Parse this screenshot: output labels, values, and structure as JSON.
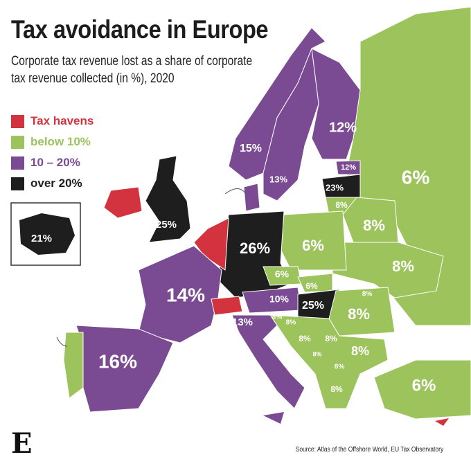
{
  "title": "Tax avoidance in Europe",
  "subtitle": "Corporate tax revenue lost as a share of corporate tax revenue collected (in %), 2020",
  "legend": [
    {
      "label": "Tax havens",
      "color": "#d2333f"
    },
    {
      "label": "below 10%",
      "color": "#9cc35c"
    },
    {
      "label": "10 – 20%",
      "color": "#7a4a93"
    },
    {
      "label": "over 20%",
      "color": "#1e1e1e"
    }
  ],
  "regions": [
    {
      "label": "12%",
      "category": "10 – 20%"
    },
    {
      "label": "15%",
      "category": "10 – 20%"
    },
    {
      "label": "13%",
      "category": "10 – 20%"
    },
    {
      "label": "12%",
      "category": "10 – 20%"
    },
    {
      "label": "23%",
      "category": "over 20%"
    },
    {
      "label": "8%",
      "category": "below 10%"
    },
    {
      "label": "6%",
      "category": "below 10%"
    },
    {
      "label": "10%",
      "category": "10 – 20%"
    },
    {
      "label": "25%",
      "category": "over 20%"
    },
    {
      "label": "21%",
      "category": "over 20%"
    },
    {
      "label": "26%",
      "category": "over 20%"
    },
    {
      "label": "6%",
      "category": "below 10%"
    },
    {
      "label": "8%",
      "category": "below 10%"
    },
    {
      "label": "8%",
      "category": "below 10%"
    },
    {
      "label": "6%",
      "category": "below 10%"
    },
    {
      "label": "6%",
      "category": "below 10%"
    },
    {
      "label": "10%",
      "category": "10 – 20%"
    },
    {
      "label": "25%",
      "category": "over 20%"
    },
    {
      "label": "8%",
      "category": "below 10%"
    },
    {
      "label": "8%",
      "category": "below 10%"
    },
    {
      "label": "14%",
      "category": "10 – 20%"
    },
    {
      "label": "13%",
      "category": "10 – 20%"
    },
    {
      "label": "8%",
      "category": "below 10%"
    },
    {
      "label": "8%",
      "category": "below 10%"
    },
    {
      "label": "8%",
      "category": "below 10%"
    },
    {
      "label": "8%",
      "category": "below 10%"
    },
    {
      "label": "8%",
      "category": "below 10%"
    },
    {
      "label": "8%",
      "category": "below 10%"
    },
    {
      "label": "8%",
      "category": "below 10%"
    },
    {
      "label": "8%",
      "category": "below 10%"
    },
    {
      "label": "9%",
      "category": "below 10%"
    },
    {
      "label": "16%",
      "category": "10 – 20%"
    },
    {
      "label": "6%",
      "category": "below 10%"
    }
  ],
  "source": "Source: Atlas of the Offshore World, EU Tax Observatory",
  "logo": "E"
}
